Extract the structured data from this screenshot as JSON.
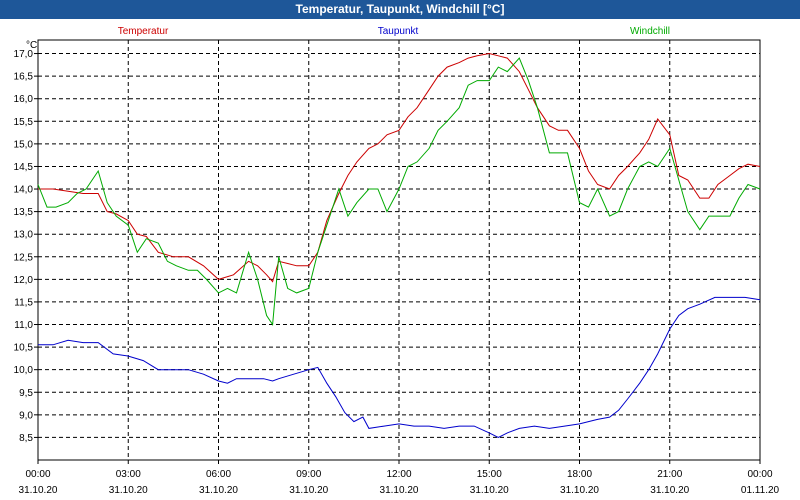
{
  "window_title": "Temperatur, Taupunkt, Windchill [°C]",
  "chart_data": {
    "type": "line",
    "title": "Temperatur, Taupunkt, Windchill [°C]",
    "ylabel": "°C",
    "ylim": [
      8.0,
      17.3
    ],
    "xlim": [
      0,
      24
    ],
    "grid": true,
    "y_ticks": [
      "8,5",
      "9,0",
      "9,5",
      "10,0",
      "10,5",
      "11,0",
      "11,5",
      "12,0",
      "12,5",
      "13,0",
      "13,5",
      "14,0",
      "14,5",
      "15,0",
      "15,5",
      "16,0",
      "16,5",
      "17,0"
    ],
    "x_ticks": [
      {
        "time": "00:00",
        "date": "31.10.20"
      },
      {
        "time": "03:00",
        "date": "31.10.20"
      },
      {
        "time": "06:00",
        "date": "31.10.20"
      },
      {
        "time": "09:00",
        "date": "31.10.20"
      },
      {
        "time": "12:00",
        "date": "31.10.20"
      },
      {
        "time": "15:00",
        "date": "31.10.20"
      },
      {
        "time": "18:00",
        "date": "31.10.20"
      },
      {
        "time": "21:00",
        "date": "31.10.20"
      },
      {
        "time": "00:00",
        "date": "01.11.20"
      }
    ],
    "series": [
      {
        "name": "Temperatur",
        "color": "#cc0000",
        "x": [
          0,
          0.5,
          1,
          1.5,
          2,
          2.3,
          2.6,
          3,
          3.3,
          3.6,
          4,
          4.5,
          5,
          5.5,
          6,
          6.5,
          7,
          7.3,
          7.6,
          7.8,
          8,
          8.3,
          8.6,
          9,
          9.3,
          9.6,
          10,
          10.3,
          10.6,
          11,
          11.3,
          11.6,
          12,
          12.3,
          12.6,
          13,
          13.3,
          13.6,
          14,
          14.3,
          14.6,
          15,
          15.3,
          15.6,
          16,
          16.3,
          16.6,
          17,
          17.3,
          17.6,
          18,
          18.3,
          18.6,
          19,
          19.3,
          19.6,
          20,
          20.3,
          20.6,
          21,
          21.3,
          21.6,
          22,
          22.3,
          22.6,
          23,
          23.3,
          23.6,
          24
        ],
        "values": [
          14.0,
          14.0,
          13.95,
          13.9,
          13.9,
          13.5,
          13.45,
          13.3,
          13.0,
          12.95,
          12.6,
          12.5,
          12.5,
          12.3,
          12.0,
          12.1,
          12.4,
          12.3,
          12.1,
          11.95,
          12.4,
          12.35,
          12.3,
          12.3,
          12.6,
          13.3,
          13.9,
          14.3,
          14.6,
          14.9,
          15.0,
          15.2,
          15.3,
          15.6,
          15.8,
          16.2,
          16.5,
          16.7,
          16.8,
          16.9,
          16.95,
          17.0,
          16.95,
          16.9,
          16.6,
          16.2,
          15.8,
          15.4,
          15.3,
          15.3,
          14.9,
          14.4,
          14.1,
          14.0,
          14.3,
          14.5,
          14.8,
          15.1,
          15.55,
          15.2,
          14.3,
          14.2,
          13.8,
          13.8,
          14.1,
          14.3,
          14.45,
          14.55,
          14.5
        ]
      },
      {
        "name": "Taupunkt",
        "color": "#0000cc",
        "x": [
          0,
          0.5,
          1,
          1.5,
          2,
          2.5,
          3,
          3.5,
          4,
          4.5,
          5,
          5.5,
          6,
          6.3,
          6.6,
          7,
          7.5,
          7.8,
          8,
          8.5,
          9,
          9.3,
          9.6,
          9.9,
          10.2,
          10.5,
          10.8,
          11,
          11.5,
          12,
          12.5,
          13,
          13.5,
          14,
          14.5,
          15,
          15.3,
          15.6,
          16,
          16.5,
          17,
          17.5,
          18,
          18.3,
          18.6,
          19,
          19.3,
          19.6,
          20,
          20.3,
          20.6,
          21,
          21.3,
          21.6,
          22,
          22.5,
          23,
          23.5,
          24
        ],
        "values": [
          10.55,
          10.55,
          10.65,
          10.6,
          10.6,
          10.35,
          10.3,
          10.2,
          10.0,
          10.0,
          10.0,
          9.9,
          9.75,
          9.7,
          9.8,
          9.8,
          9.8,
          9.75,
          9.8,
          9.9,
          10.0,
          10.05,
          9.7,
          9.4,
          9.05,
          8.85,
          8.95,
          8.7,
          8.75,
          8.8,
          8.75,
          8.75,
          8.7,
          8.75,
          8.75,
          8.6,
          8.5,
          8.6,
          8.7,
          8.75,
          8.7,
          8.75,
          8.8,
          8.85,
          8.9,
          8.95,
          9.1,
          9.35,
          9.7,
          10.0,
          10.35,
          10.9,
          11.2,
          11.35,
          11.45,
          11.6,
          11.6,
          11.6,
          11.55
        ]
      },
      {
        "name": "Windchill",
        "color": "#00aa00",
        "x": [
          0,
          0.3,
          0.6,
          1,
          1.3,
          1.6,
          2,
          2.3,
          2.6,
          3,
          3.3,
          3.6,
          4,
          4.3,
          4.6,
          5,
          5.3,
          5.6,
          6,
          6.3,
          6.6,
          7,
          7.3,
          7.6,
          7.8,
          8,
          8.3,
          8.6,
          9,
          9.3,
          9.6,
          10,
          10.3,
          10.6,
          11,
          11.3,
          11.6,
          12,
          12.3,
          12.6,
          13,
          13.3,
          13.6,
          14,
          14.3,
          14.6,
          15,
          15.3,
          15.6,
          16,
          16.3,
          16.6,
          17,
          17.3,
          17.6,
          18,
          18.3,
          18.6,
          19,
          19.3,
          19.6,
          20,
          20.3,
          20.6,
          21,
          21.3,
          21.6,
          22,
          22.3,
          22.6,
          23,
          23.3,
          23.6,
          24
        ],
        "values": [
          14.1,
          13.6,
          13.6,
          13.7,
          13.9,
          14.0,
          14.4,
          13.7,
          13.4,
          13.2,
          12.6,
          12.9,
          12.8,
          12.4,
          12.3,
          12.2,
          12.2,
          12.0,
          11.7,
          11.8,
          11.7,
          12.6,
          12.0,
          11.2,
          11.0,
          12.5,
          11.8,
          11.7,
          11.8,
          12.6,
          13.2,
          14.0,
          13.4,
          13.7,
          14.0,
          14.0,
          13.5,
          14.0,
          14.5,
          14.6,
          14.9,
          15.3,
          15.5,
          15.8,
          16.3,
          16.4,
          16.4,
          16.7,
          16.6,
          16.9,
          16.4,
          15.8,
          14.8,
          14.8,
          14.8,
          13.7,
          13.6,
          14.0,
          13.4,
          13.5,
          14.0,
          14.5,
          14.6,
          14.5,
          14.9,
          14.2,
          13.5,
          13.1,
          13.4,
          13.4,
          13.4,
          13.8,
          14.1,
          14.0
        ]
      }
    ]
  }
}
